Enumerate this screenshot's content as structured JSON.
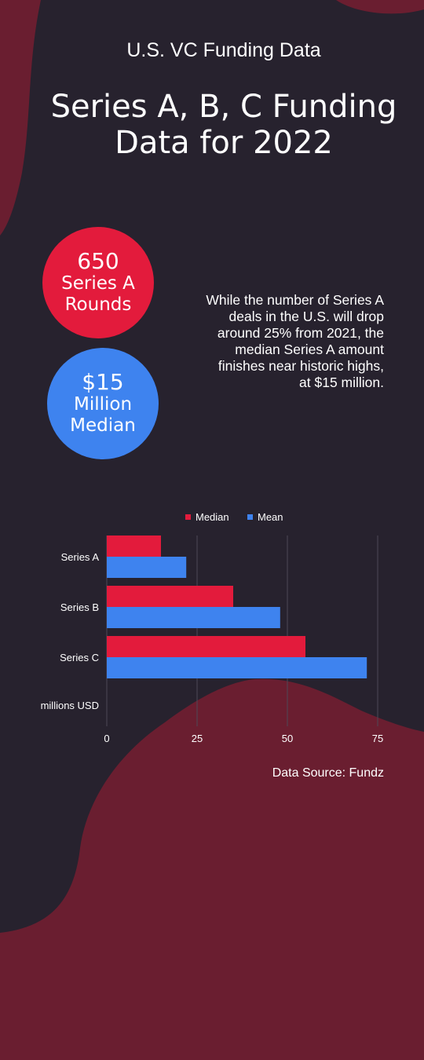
{
  "kicker": "U.S. VC Funding Data",
  "headline": {
    "line1": "Series A, B, C Funding",
    "line2": "Data for 2022"
  },
  "stats": [
    {
      "value": "650",
      "line1": "Series A",
      "line2": "Rounds",
      "color": "#e31b3c"
    },
    {
      "value": "$15",
      "line1": "Million",
      "line2": "Median",
      "color": "#3e83ef"
    }
  ],
  "blurb": {
    "lines": [
      "While the number of Series A",
      "deals in the U.S. will drop",
      "around 25% from 2021, the",
      "median Series A amount",
      "finishes near historic highs,",
      "at $15 million."
    ]
  },
  "source": "Data Source: Fundz",
  "colors": {
    "background": "#27222e",
    "wave": "#6a1e30",
    "median": "#e31b3c",
    "mean": "#3e83ef"
  },
  "chart_data": {
    "type": "bar",
    "orientation": "horizontal",
    "categories": [
      "Series A",
      "Series B",
      "Series C"
    ],
    "series": [
      {
        "name": "Median",
        "values": [
          15,
          35,
          55
        ],
        "color": "#e31b3c"
      },
      {
        "name": "Mean",
        "values": [
          22,
          48,
          72
        ],
        "color": "#3e83ef"
      }
    ],
    "xticks": [
      0,
      25,
      50,
      75
    ],
    "xlim": [
      0,
      75
    ],
    "xlabel": "millions USD",
    "legend_position": "top-center",
    "grid": true
  }
}
